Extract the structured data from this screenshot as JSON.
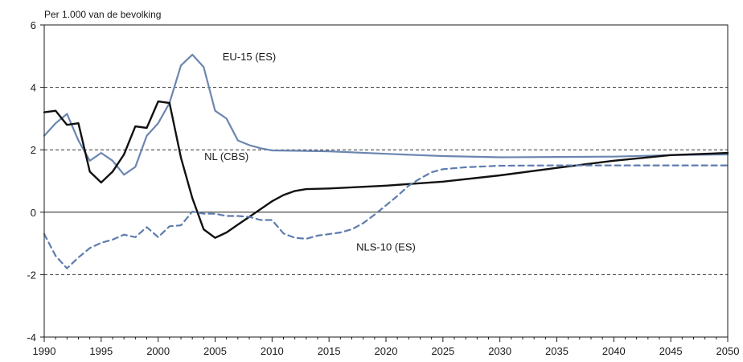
{
  "chart_data": {
    "type": "line",
    "title": "",
    "ylabel": "Per 1.000 van de bevolking",
    "xlabel": "",
    "xlim": [
      1990,
      2050
    ],
    "ylim": [
      -4,
      6
    ],
    "x_ticks": [
      "1990",
      "1995",
      "2000",
      "2005",
      "2010",
      "2015",
      "2020",
      "2025",
      "2030",
      "2035",
      "2040",
      "2045",
      "2050"
    ],
    "y_ticks": [
      "6",
      "4",
      "2",
      "0",
      "-2",
      "-4"
    ],
    "gridlines_dashed": [
      -2,
      2,
      4
    ],
    "zero_line": 0,
    "colors": {
      "eu15": "#6b86b0",
      "nl": "#111111",
      "nls10": "#5f7cae"
    },
    "series": [
      {
        "name": "EU-15 (ES)",
        "color": "#6b86b0",
        "style": "solid",
        "points": [
          [
            1990,
            2.45
          ],
          [
            1991,
            2.85
          ],
          [
            1992,
            3.15
          ],
          [
            1993,
            2.3
          ],
          [
            1994,
            1.65
          ],
          [
            1995,
            1.9
          ],
          [
            1996,
            1.65
          ],
          [
            1997,
            1.2
          ],
          [
            1998,
            1.45
          ],
          [
            1999,
            2.45
          ],
          [
            2000,
            2.85
          ],
          [
            2001,
            3.5
          ],
          [
            2002,
            4.7
          ],
          [
            2003,
            5.05
          ],
          [
            2004,
            4.65
          ],
          [
            2005,
            3.25
          ],
          [
            2006,
            3.0
          ],
          [
            2007,
            2.3
          ],
          [
            2008,
            2.15
          ],
          [
            2009,
            2.05
          ],
          [
            2010,
            1.98
          ],
          [
            2012,
            1.97
          ],
          [
            2015,
            1.95
          ],
          [
            2020,
            1.87
          ],
          [
            2025,
            1.8
          ],
          [
            2030,
            1.76
          ],
          [
            2035,
            1.77
          ],
          [
            2040,
            1.78
          ],
          [
            2045,
            1.83
          ],
          [
            2050,
            1.85
          ]
        ]
      },
      {
        "name": "NL (CBS)",
        "color": "#111111",
        "style": "solid",
        "points": [
          [
            1990,
            3.2
          ],
          [
            1991,
            3.25
          ],
          [
            1992,
            2.8
          ],
          [
            1993,
            2.85
          ],
          [
            1994,
            1.3
          ],
          [
            1995,
            0.95
          ],
          [
            1996,
            1.3
          ],
          [
            1997,
            1.85
          ],
          [
            1998,
            2.75
          ],
          [
            1999,
            2.7
          ],
          [
            2000,
            3.55
          ],
          [
            2001,
            3.5
          ],
          [
            2002,
            1.75
          ],
          [
            2003,
            0.45
          ],
          [
            2004,
            -0.55
          ],
          [
            2005,
            -0.82
          ],
          [
            2006,
            -0.65
          ],
          [
            2007,
            -0.4
          ],
          [
            2008,
            -0.15
          ],
          [
            2009,
            0.1
          ],
          [
            2010,
            0.35
          ],
          [
            2011,
            0.55
          ],
          [
            2012,
            0.68
          ],
          [
            2013,
            0.74
          ],
          [
            2015,
            0.76
          ],
          [
            2020,
            0.85
          ],
          [
            2025,
            0.98
          ],
          [
            2030,
            1.18
          ],
          [
            2035,
            1.42
          ],
          [
            2040,
            1.65
          ],
          [
            2045,
            1.83
          ],
          [
            2050,
            1.9
          ]
        ]
      },
      {
        "name": "NLS-10 (ES)",
        "color": "#5f7cae",
        "style": "dashed",
        "points": [
          [
            1990,
            -0.7
          ],
          [
            1991,
            -1.4
          ],
          [
            1992,
            -1.8
          ],
          [
            1993,
            -1.45
          ],
          [
            1994,
            -1.15
          ],
          [
            1995,
            -0.98
          ],
          [
            1996,
            -0.88
          ],
          [
            1997,
            -0.72
          ],
          [
            1998,
            -0.8
          ],
          [
            1999,
            -0.48
          ],
          [
            2000,
            -0.8
          ],
          [
            2001,
            -0.45
          ],
          [
            2002,
            -0.42
          ],
          [
            2003,
            0.02
          ],
          [
            2004,
            -0.05
          ],
          [
            2005,
            -0.05
          ],
          [
            2006,
            -0.12
          ],
          [
            2007,
            -0.12
          ],
          [
            2008,
            -0.15
          ],
          [
            2009,
            -0.25
          ],
          [
            2010,
            -0.25
          ],
          [
            2011,
            -0.68
          ],
          [
            2012,
            -0.82
          ],
          [
            2013,
            -0.85
          ],
          [
            2014,
            -0.75
          ],
          [
            2015,
            -0.7
          ],
          [
            2016,
            -0.65
          ],
          [
            2017,
            -0.55
          ],
          [
            2018,
            -0.35
          ],
          [
            2019,
            -0.08
          ],
          [
            2020,
            0.22
          ],
          [
            2021,
            0.52
          ],
          [
            2022,
            0.85
          ],
          [
            2023,
            1.08
          ],
          [
            2024,
            1.28
          ],
          [
            2025,
            1.38
          ],
          [
            2027,
            1.44
          ],
          [
            2030,
            1.49
          ],
          [
            2035,
            1.5
          ],
          [
            2040,
            1.5
          ],
          [
            2045,
            1.5
          ],
          [
            2050,
            1.5
          ]
        ]
      }
    ],
    "annotations": [
      {
        "text": "EU-15 (ES)",
        "x": 2008,
        "y": 5.0,
        "anchor": "middle"
      },
      {
        "text": "NL (CBS)",
        "x": 2006,
        "y": 1.8,
        "anchor": "middle"
      },
      {
        "text": "NLS-10 (ES)",
        "x": 2020,
        "y": -1.1,
        "anchor": "middle"
      }
    ]
  }
}
